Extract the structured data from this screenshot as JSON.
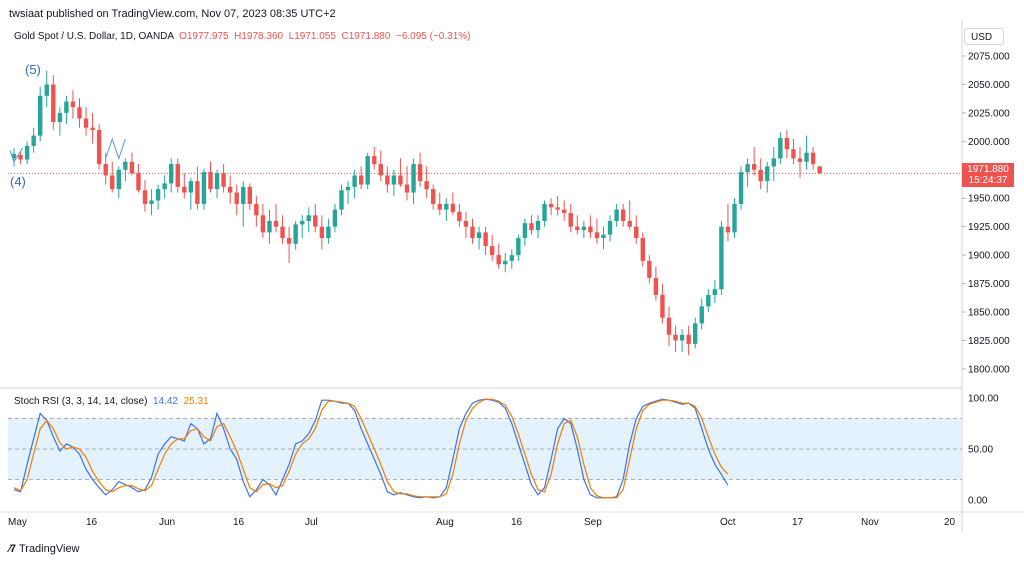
{
  "header": {
    "published": "twsiaat published on TradingView.com, Nov 07, 2023 08:35 UTC+2"
  },
  "legend": {
    "symbol": "Gold Spot / U.S. Dollar, 1D, OANDA",
    "open": "O1977.975",
    "high": "H1978.360",
    "low": "L1971.055",
    "close": "C1971.880",
    "change": "−6.095 (−0.31%)"
  },
  "currency_button": "USD",
  "price_tag": {
    "price": "1971.880",
    "countdown": "15:24:37"
  },
  "annotations": {
    "wave5": "(5)",
    "wave4": "(4)"
  },
  "rsi_legend": {
    "title": "Stoch RSI (3, 3, 14, 14, close)",
    "k": "14.42",
    "d": "25.31"
  },
  "footer": {
    "brand": "TradingView"
  },
  "colors": {
    "up": "#26a69a",
    "down": "#ef5350",
    "k_line": "#3d73e6",
    "d_line": "#f57c00",
    "band_fill": "#e3f2fd"
  },
  "chart_data": [
    {
      "type": "candlestick",
      "title": "Gold Spot / U.S. Dollar, 1D, OANDA",
      "ylim": [
        1785,
        2082
      ],
      "y_ticks": [
        "2075.000",
        "2050.000",
        "2025.000",
        "2000.000",
        "1975.000",
        "1950.000",
        "1925.000",
        "1900.000",
        "1875.000",
        "1850.000",
        "1825.000",
        "1800.000"
      ],
      "x_ticks": [
        "May",
        "16",
        "Jun",
        "16",
        "Jul",
        "Aug",
        "16",
        "Sep",
        "Oct",
        "17",
        "Nov",
        "20"
      ],
      "last_price": 1971.88,
      "candles": [
        [
          1985,
          1994,
          1978,
          1989
        ],
        [
          1988,
          1992,
          1980,
          1984
        ],
        [
          1984,
          2000,
          1980,
          1996
        ],
        [
          1996,
          2012,
          1990,
          2005
        ],
        [
          2005,
          2048,
          2000,
          2040
        ],
        [
          2040,
          2062,
          2030,
          2050
        ],
        [
          2050,
          2058,
          2010,
          2017
        ],
        [
          2017,
          2030,
          2005,
          2025
        ],
        [
          2025,
          2040,
          2015,
          2035
        ],
        [
          2035,
          2045,
          2020,
          2030
        ],
        [
          2030,
          2038,
          2012,
          2020
        ],
        [
          2020,
          2030,
          2005,
          2012
        ],
        [
          2012,
          2025,
          1998,
          2010
        ],
        [
          2010,
          2015,
          1975,
          1980
        ],
        [
          1980,
          1990,
          1962,
          1970
        ],
        [
          1970,
          1982,
          1955,
          1958
        ],
        [
          1958,
          1978,
          1950,
          1975
        ],
        [
          1975,
          1985,
          1965,
          1982
        ],
        [
          1982,
          1990,
          1970,
          1972
        ],
        [
          1972,
          1980,
          1955,
          1957
        ],
        [
          1957,
          1966,
          1938,
          1945
        ],
        [
          1945,
          1958,
          1935,
          1948
        ],
        [
          1948,
          1962,
          1940,
          1958
        ],
        [
          1958,
          1970,
          1950,
          1963
        ],
        [
          1963,
          1985,
          1955,
          1980
        ],
        [
          1980,
          1985,
          1955,
          1960
        ],
        [
          1960,
          1972,
          1950,
          1955
        ],
        [
          1955,
          1968,
          1940,
          1965
        ],
        [
          1965,
          1978,
          1940,
          1945
        ],
        [
          1945,
          1976,
          1940,
          1973
        ],
        [
          1973,
          1982,
          1955,
          1958
        ],
        [
          1958,
          1975,
          1950,
          1972
        ],
        [
          1972,
          1980,
          1955,
          1960
        ],
        [
          1960,
          1970,
          1945,
          1955
        ],
        [
          1955,
          1962,
          1935,
          1945
        ],
        [
          1945,
          1965,
          1925,
          1960
        ],
        [
          1960,
          1963,
          1940,
          1945
        ],
        [
          1945,
          1952,
          1925,
          1935
        ],
        [
          1935,
          1945,
          1915,
          1920
        ],
        [
          1920,
          1940,
          1910,
          1930
        ],
        [
          1930,
          1945,
          1920,
          1925
        ],
        [
          1925,
          1935,
          1910,
          1915
        ],
        [
          1915,
          1925,
          1893,
          1910
        ],
        [
          1910,
          1930,
          1905,
          1927
        ],
        [
          1927,
          1935,
          1915,
          1930
        ],
        [
          1930,
          1942,
          1920,
          1935
        ],
        [
          1935,
          1945,
          1920,
          1925
        ],
        [
          1925,
          1935,
          1905,
          1915
        ],
        [
          1915,
          1932,
          1910,
          1925
        ],
        [
          1925,
          1945,
          1920,
          1940
        ],
        [
          1940,
          1962,
          1935,
          1957
        ],
        [
          1957,
          1965,
          1945,
          1960
        ],
        [
          1960,
          1975,
          1950,
          1970
        ],
        [
          1970,
          1978,
          1958,
          1962
        ],
        [
          1962,
          1990,
          1958,
          1987
        ],
        [
          1987,
          1995,
          1975,
          1980
        ],
        [
          1980,
          1992,
          1965,
          1970
        ],
        [
          1970,
          1978,
          1955,
          1962
        ],
        [
          1962,
          1975,
          1952,
          1970
        ],
        [
          1970,
          1985,
          1960,
          1962
        ],
        [
          1962,
          1978,
          1948,
          1955
        ],
        [
          1955,
          1985,
          1945,
          1980
        ],
        [
          1980,
          1990,
          1960,
          1965
        ],
        [
          1965,
          1978,
          1950,
          1958
        ],
        [
          1958,
          1962,
          1940,
          1945
        ],
        [
          1945,
          1955,
          1935,
          1940
        ],
        [
          1940,
          1950,
          1930,
          1945
        ],
        [
          1945,
          1955,
          1935,
          1938
        ],
        [
          1938,
          1945,
          1925,
          1930
        ],
        [
          1930,
          1938,
          1915,
          1925
        ],
        [
          1925,
          1932,
          1910,
          1915
        ],
        [
          1915,
          1925,
          1905,
          1920
        ],
        [
          1920,
          1925,
          1900,
          1908
        ],
        [
          1908,
          1918,
          1895,
          1900
        ],
        [
          1900,
          1910,
          1888,
          1892
        ],
        [
          1892,
          1902,
          1885,
          1895
        ],
        [
          1895,
          1905,
          1888,
          1900
        ],
        [
          1900,
          1918,
          1895,
          1915
        ],
        [
          1915,
          1932,
          1908,
          1928
        ],
        [
          1928,
          1935,
          1918,
          1922
        ],
        [
          1922,
          1935,
          1915,
          1930
        ],
        [
          1930,
          1948,
          1925,
          1945
        ],
        [
          1945,
          1950,
          1935,
          1942
        ],
        [
          1942,
          1952,
          1935,
          1940
        ],
        [
          1940,
          1948,
          1930,
          1937
        ],
        [
          1937,
          1945,
          1920,
          1925
        ],
        [
          1925,
          1935,
          1918,
          1922
        ],
        [
          1922,
          1930,
          1915,
          1925
        ],
        [
          1925,
          1935,
          1915,
          1920
        ],
        [
          1920,
          1932,
          1910,
          1915
        ],
        [
          1915,
          1925,
          1905,
          1918
        ],
        [
          1918,
          1935,
          1912,
          1930
        ],
        [
          1930,
          1945,
          1925,
          1940
        ],
        [
          1940,
          1945,
          1925,
          1930
        ],
        [
          1930,
          1948,
          1922,
          1925
        ],
        [
          1925,
          1935,
          1910,
          1915
        ],
        [
          1915,
          1920,
          1890,
          1895
        ],
        [
          1895,
          1900,
          1875,
          1880
        ],
        [
          1880,
          1890,
          1860,
          1865
        ],
        [
          1865,
          1875,
          1840,
          1845
        ],
        [
          1845,
          1855,
          1820,
          1830
        ],
        [
          1830,
          1838,
          1815,
          1825
        ],
        [
          1825,
          1835,
          1815,
          1830
        ],
        [
          1830,
          1838,
          1812,
          1822
        ],
        [
          1822,
          1845,
          1818,
          1840
        ],
        [
          1840,
          1862,
          1835,
          1855
        ],
        [
          1855,
          1870,
          1850,
          1865
        ],
        [
          1865,
          1878,
          1858,
          1870
        ],
        [
          1870,
          1930,
          1865,
          1925
        ],
        [
          1925,
          1945,
          1912,
          1920
        ],
        [
          1920,
          1950,
          1915,
          1945
        ],
        [
          1945,
          1978,
          1940,
          1973
        ],
        [
          1973,
          1985,
          1960,
          1980
        ],
        [
          1980,
          1995,
          1970,
          1975
        ],
        [
          1975,
          1985,
          1958,
          1965
        ],
        [
          1965,
          1982,
          1955,
          1978
        ],
        [
          1978,
          1995,
          1965,
          1985
        ],
        [
          1985,
          2008,
          1980,
          2003
        ],
        [
          2003,
          2010,
          1985,
          1993
        ],
        [
          1993,
          2002,
          1980,
          1985
        ],
        [
          1985,
          1995,
          1968,
          1982
        ],
        [
          1982,
          2005,
          1975,
          1990
        ],
        [
          1990,
          1995,
          1975,
          1980
        ],
        [
          1978,
          1978,
          1971,
          1972
        ]
      ]
    },
    {
      "type": "line",
      "title": "Stoch RSI (3, 3, 14, 14, close)",
      "ylim": [
        -8,
        108
      ],
      "y_ticks": [
        "100.00",
        "50.00",
        "0.00"
      ],
      "bands": [
        20,
        80
      ],
      "series": [
        {
          "name": "K",
          "values": [
            10,
            8,
            35,
            60,
            85,
            78,
            62,
            48,
            55,
            52,
            45,
            30,
            20,
            12,
            5,
            10,
            18,
            15,
            12,
            8,
            10,
            22,
            45,
            55,
            62,
            60,
            58,
            75,
            70,
            55,
            60,
            85,
            70,
            50,
            40,
            18,
            3,
            10,
            20,
            15,
            5,
            20,
            35,
            55,
            58,
            65,
            78,
            98,
            98,
            97,
            95,
            95,
            88,
            70,
            55,
            40,
            25,
            8,
            5,
            7,
            5,
            3,
            2,
            3,
            2,
            3,
            12,
            40,
            70,
            85,
            95,
            98,
            99,
            98,
            96,
            90,
            75,
            55,
            35,
            15,
            5,
            12,
            40,
            70,
            80,
            75,
            50,
            20,
            5,
            2,
            2,
            2,
            3,
            20,
            55,
            80,
            92,
            95,
            97,
            99,
            98,
            96,
            94,
            95,
            90,
            70,
            50,
            35,
            25,
            14.42
          ]
        },
        {
          "name": "D",
          "values": [
            12,
            9,
            20,
            45,
            70,
            78,
            70,
            56,
            50,
            52,
            50,
            42,
            28,
            18,
            10,
            8,
            12,
            14,
            14,
            11,
            9,
            14,
            30,
            45,
            55,
            60,
            60,
            68,
            70,
            62,
            58,
            72,
            75,
            62,
            48,
            30,
            12,
            8,
            15,
            16,
            12,
            14,
            28,
            45,
            55,
            60,
            70,
            88,
            97,
            97,
            96,
            95,
            92,
            80,
            65,
            50,
            35,
            18,
            8,
            6,
            6,
            4,
            3,
            3,
            3,
            3,
            6,
            25,
            55,
            78,
            90,
            96,
            99,
            99,
            97,
            93,
            82,
            65,
            45,
            25,
            10,
            8,
            25,
            55,
            75,
            78,
            62,
            35,
            12,
            4,
            2,
            2,
            2,
            10,
            40,
            70,
            88,
            94,
            96,
            98,
            98,
            97,
            95,
            95,
            92,
            80,
            62,
            45,
            32,
            25.31
          ]
        }
      ]
    }
  ]
}
